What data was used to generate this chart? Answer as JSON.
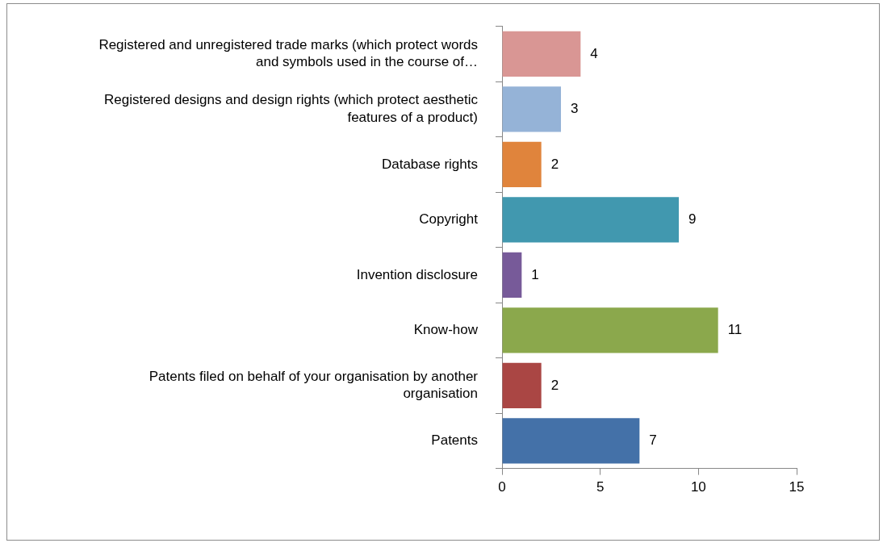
{
  "chart_data": {
    "type": "bar",
    "orientation": "horizontal",
    "categories": [
      "Registered and unregistered trade marks (which protect words and symbols used in the course of…",
      "Registered designs and design rights (which protect aesthetic features of a product)",
      "Database rights",
      "Copyright",
      "Invention disclosure",
      "Know-how",
      "Patents filed on behalf of your organisation by another organisation",
      "Patents"
    ],
    "values": [
      4,
      3,
      2,
      9,
      1,
      11,
      2,
      7
    ],
    "colors": [
      "#d99694",
      "#95b3d7",
      "#e0843c",
      "#4198af",
      "#775a99",
      "#8ba84c",
      "#aa4644",
      "#4471a8"
    ],
    "xlim": [
      0,
      15
    ],
    "xticks": [
      0,
      5,
      10,
      15
    ],
    "grid": false,
    "legend": false,
    "data_labels": true
  }
}
